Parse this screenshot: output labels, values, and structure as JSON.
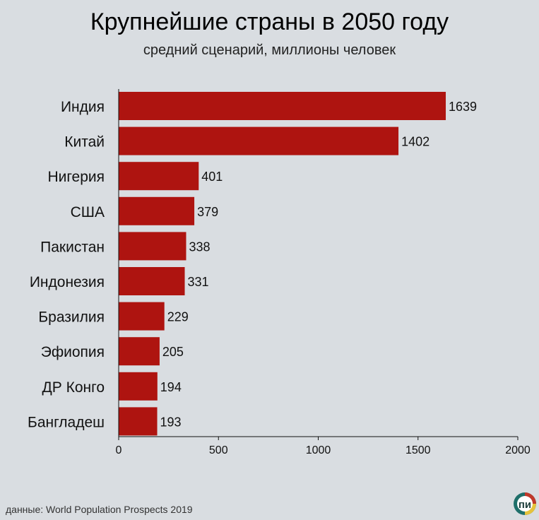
{
  "header": {
    "title": "Крупнейшие страны в 2050 году",
    "subtitle": "средний сценарий, миллионы человек"
  },
  "footer": {
    "source": "данные: World Population Prospects 2019",
    "logo_text": "пи"
  },
  "colors": {
    "bar": "#ae1410",
    "background": "#d9dde1",
    "axis": "#111111"
  },
  "chart_data": {
    "type": "bar",
    "orientation": "horizontal",
    "categories": [
      "Индия",
      "Китай",
      "Нигерия",
      "США",
      "Пакистан",
      "Индонезия",
      "Бразилия",
      "Эфиопия",
      "ДР Конго",
      "Бангладеш"
    ],
    "values": [
      1639,
      1402,
      401,
      379,
      338,
      331,
      229,
      205,
      194,
      193
    ],
    "value_labels": [
      "1639",
      "1402",
      "401",
      "379",
      "338",
      "331",
      "229",
      "205",
      "194",
      "193"
    ],
    "xlim": [
      0,
      2000
    ],
    "xticks": [
      0,
      500,
      1000,
      1500,
      2000
    ],
    "xtick_labels": [
      "0",
      "500",
      "1000",
      "1500",
      "2000"
    ],
    "grid": false,
    "legend": "none"
  }
}
